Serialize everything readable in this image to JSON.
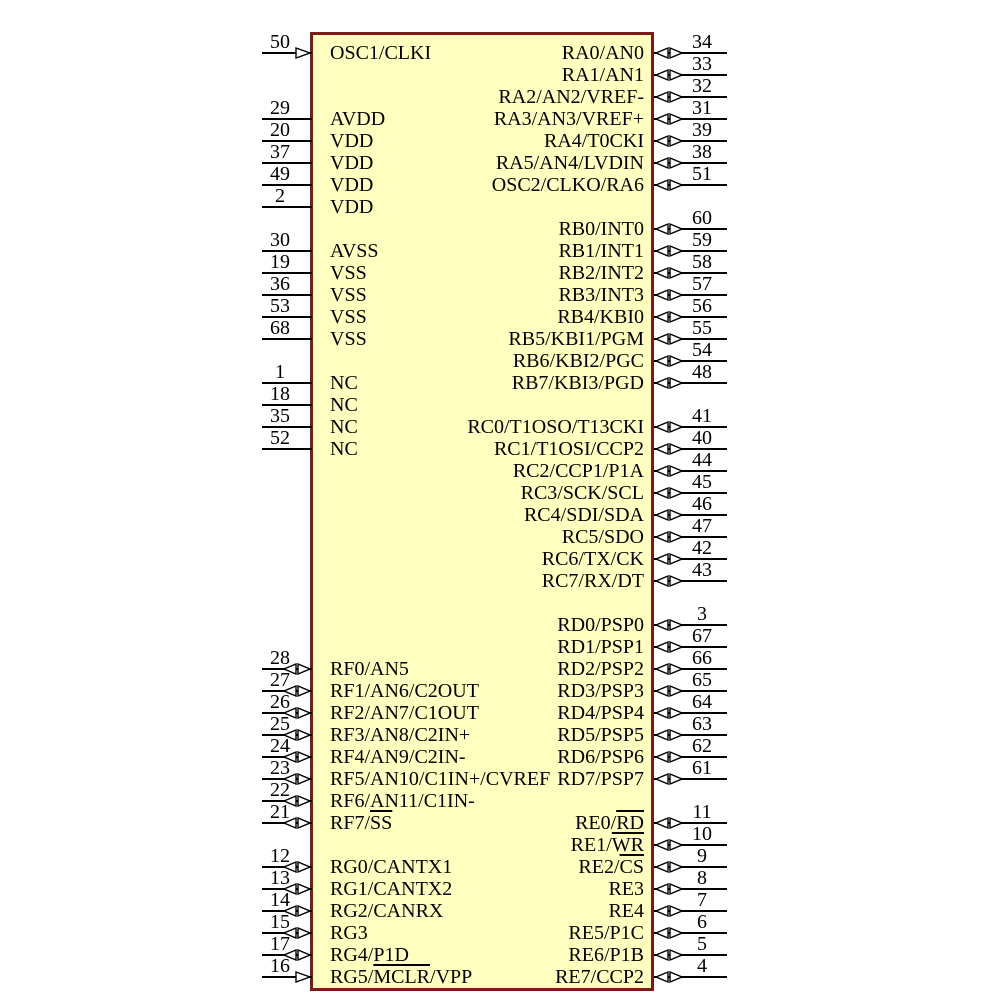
{
  "diagram": {
    "type": "schematic-component-symbol",
    "colors": {
      "body_fill": "#ffffc0",
      "body_border": "#7d1a15",
      "wire": "#000000",
      "text": "#000000",
      "pin_marker_fill": "#ffffff"
    },
    "icons": {
      "bidir": "bidirectional-pin-arrow-icon",
      "in": "input-pin-arrow-icon"
    },
    "left_pins": [
      {
        "num": "50",
        "label": "OSC1/CLKI",
        "row": 0,
        "dir": "in"
      },
      {
        "num": "29",
        "label": "AVDD",
        "row": 3,
        "dir": "none"
      },
      {
        "num": "20",
        "label": "VDD",
        "row": 4,
        "dir": "none"
      },
      {
        "num": "37",
        "label": "VDD",
        "row": 5,
        "dir": "none"
      },
      {
        "num": "49",
        "label": "VDD",
        "row": 6,
        "dir": "none"
      },
      {
        "num": "2",
        "label": "VDD",
        "row": 7,
        "dir": "none"
      },
      {
        "num": "30",
        "label": "AVSS",
        "row": 9,
        "dir": "none"
      },
      {
        "num": "19",
        "label": "VSS",
        "row": 10,
        "dir": "none"
      },
      {
        "num": "36",
        "label": "VSS",
        "row": 11,
        "dir": "none"
      },
      {
        "num": "53",
        "label": "VSS",
        "row": 12,
        "dir": "none"
      },
      {
        "num": "68",
        "label": "VSS",
        "row": 13,
        "dir": "none"
      },
      {
        "num": "1",
        "label": "NC",
        "row": 15,
        "dir": "none"
      },
      {
        "num": "18",
        "label": "NC",
        "row": 16,
        "dir": "none"
      },
      {
        "num": "35",
        "label": "NC",
        "row": 17,
        "dir": "none"
      },
      {
        "num": "52",
        "label": "NC",
        "row": 18,
        "dir": "none"
      },
      {
        "num": "28",
        "label": "RF0/AN5",
        "row": 28,
        "dir": "bidir"
      },
      {
        "num": "27",
        "label": "RF1/AN6/C2OUT",
        "row": 29,
        "dir": "bidir"
      },
      {
        "num": "26",
        "label": "RF2/AN7/C1OUT",
        "row": 30,
        "dir": "bidir"
      },
      {
        "num": "25",
        "label": "RF3/AN8/C2IN+",
        "row": 31,
        "dir": "bidir"
      },
      {
        "num": "24",
        "label": "RF4/AN9/C2IN-",
        "row": 32,
        "dir": "bidir"
      },
      {
        "num": "23",
        "label": "RF5/AN10/C1IN+/CVREF",
        "row": 33,
        "dir": "bidir"
      },
      {
        "num": "22",
        "label": "RF6/AN11/C1IN-",
        "row": 34,
        "dir": "bidir"
      },
      {
        "num": "21",
        "label": "RF7/{SS}",
        "row": 35,
        "dir": "bidir"
      },
      {
        "num": "12",
        "label": "RG0/CANTX1",
        "row": 37,
        "dir": "bidir"
      },
      {
        "num": "13",
        "label": "RG1/CANTX2",
        "row": 38,
        "dir": "bidir"
      },
      {
        "num": "14",
        "label": "RG2/CANRX",
        "row": 39,
        "dir": "bidir"
      },
      {
        "num": "15",
        "label": "RG3",
        "row": 40,
        "dir": "bidir"
      },
      {
        "num": "17",
        "label": "RG4/P1D",
        "row": 41,
        "dir": "bidir"
      },
      {
        "num": "16",
        "label": "RG5/{MCLR}/VPP",
        "row": 42,
        "dir": "in"
      }
    ],
    "right_pins": [
      {
        "num": "34",
        "label": "RA0/AN0",
        "row": 0,
        "dir": "bidir"
      },
      {
        "num": "33",
        "label": "RA1/AN1",
        "row": 1,
        "dir": "bidir"
      },
      {
        "num": "32",
        "label": "RA2/AN2/VREF-",
        "row": 2,
        "dir": "bidir"
      },
      {
        "num": "31",
        "label": "RA3/AN3/VREF+",
        "row": 3,
        "dir": "bidir"
      },
      {
        "num": "39",
        "label": "RA4/T0CKI",
        "row": 4,
        "dir": "bidir"
      },
      {
        "num": "38",
        "label": "RA5/AN4/LVDIN",
        "row": 5,
        "dir": "bidir"
      },
      {
        "num": "51",
        "label": "OSC2/CLKO/RA6",
        "row": 6,
        "dir": "bidir"
      },
      {
        "num": "60",
        "label": "RB0/INT0",
        "row": 8,
        "dir": "bidir"
      },
      {
        "num": "59",
        "label": "RB1/INT1",
        "row": 9,
        "dir": "bidir"
      },
      {
        "num": "58",
        "label": "RB2/INT2",
        "row": 10,
        "dir": "bidir"
      },
      {
        "num": "57",
        "label": "RB3/INT3",
        "row": 11,
        "dir": "bidir"
      },
      {
        "num": "56",
        "label": "RB4/KBI0",
        "row": 12,
        "dir": "bidir"
      },
      {
        "num": "55",
        "label": "RB5/KBI1/PGM",
        "row": 13,
        "dir": "bidir"
      },
      {
        "num": "54",
        "label": "RB6/KBI2/PGC",
        "row": 14,
        "dir": "bidir"
      },
      {
        "num": "48",
        "label": "RB7/KBI3/PGD",
        "row": 15,
        "dir": "bidir"
      },
      {
        "num": "41",
        "label": "RC0/T1OSO/T13CKI",
        "row": 17,
        "dir": "bidir"
      },
      {
        "num": "40",
        "label": "RC1/T1OSI/CCP2",
        "row": 18,
        "dir": "bidir"
      },
      {
        "num": "44",
        "label": "RC2/CCP1/P1A",
        "row": 19,
        "dir": "bidir"
      },
      {
        "num": "45",
        "label": "RC3/SCK/SCL",
        "row": 20,
        "dir": "bidir"
      },
      {
        "num": "46",
        "label": "RC4/SDI/SDA",
        "row": 21,
        "dir": "bidir"
      },
      {
        "num": "47",
        "label": "RC5/SDO",
        "row": 22,
        "dir": "bidir"
      },
      {
        "num": "42",
        "label": "RC6/TX/CK",
        "row": 23,
        "dir": "bidir"
      },
      {
        "num": "43",
        "label": "RC7/RX/DT",
        "row": 24,
        "dir": "bidir"
      },
      {
        "num": "3",
        "label": "RD0/PSP0",
        "row": 26,
        "dir": "bidir"
      },
      {
        "num": "67",
        "label": "RD1/PSP1",
        "row": 27,
        "dir": "bidir"
      },
      {
        "num": "66",
        "label": "RD2/PSP2",
        "row": 28,
        "dir": "bidir"
      },
      {
        "num": "65",
        "label": "RD3/PSP3",
        "row": 29,
        "dir": "bidir"
      },
      {
        "num": "64",
        "label": "RD4/PSP4",
        "row": 30,
        "dir": "bidir"
      },
      {
        "num": "63",
        "label": "RD5/PSP5",
        "row": 31,
        "dir": "bidir"
      },
      {
        "num": "62",
        "label": "RD6/PSP6",
        "row": 32,
        "dir": "bidir"
      },
      {
        "num": "61",
        "label": "RD7/PSP7",
        "row": 33,
        "dir": "bidir"
      },
      {
        "num": "11",
        "label": "RE0/{RD}",
        "row": 35,
        "dir": "bidir"
      },
      {
        "num": "10",
        "label": "RE1/{WR}",
        "row": 36,
        "dir": "bidir"
      },
      {
        "num": "9",
        "label": "RE2/{CS}",
        "row": 37,
        "dir": "bidir"
      },
      {
        "num": "8",
        "label": "RE3",
        "row": 38,
        "dir": "bidir"
      },
      {
        "num": "7",
        "label": "RE4",
        "row": 39,
        "dir": "bidir"
      },
      {
        "num": "6",
        "label": "RE5/P1C",
        "row": 40,
        "dir": "bidir"
      },
      {
        "num": "5",
        "label": "RE6/P1B",
        "row": 41,
        "dir": "bidir"
      },
      {
        "num": "4",
        "label": "RE7/CCP2",
        "row": 42,
        "dir": "bidir"
      }
    ]
  }
}
